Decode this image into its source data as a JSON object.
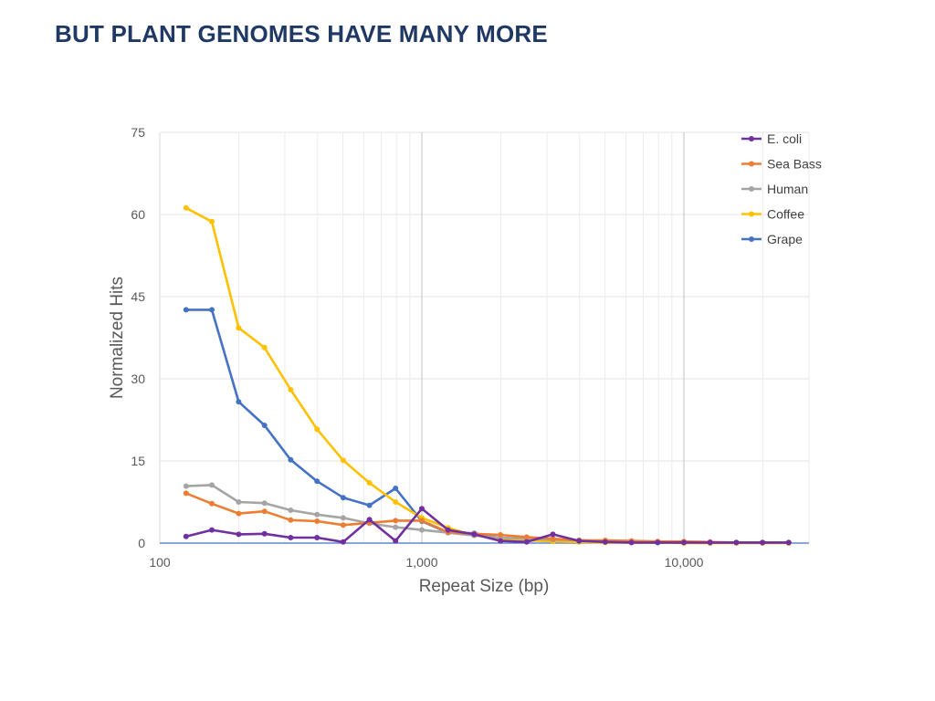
{
  "slide": {
    "title": "BUT PLANT GENOMES HAVE MANY MORE"
  },
  "chart_data": {
    "type": "line",
    "xlabel": "Repeat Size (bp)",
    "ylabel": "Normalized Hits",
    "x_scale": "log",
    "xlim": [
      100,
      30000
    ],
    "ylim": [
      0,
      75
    ],
    "y_ticks": [
      0,
      15,
      30,
      45,
      60,
      75
    ],
    "x_ticks": [
      100,
      1000,
      10000
    ],
    "x_tick_labels": [
      "100",
      "1,000",
      "10,000"
    ],
    "grid": true,
    "legend_position": "right",
    "x": [
      126,
      158,
      200,
      251,
      316,
      398,
      501,
      631,
      794,
      1000,
      1259,
      1585,
      1995,
      2512,
      3162,
      3981,
      5012,
      6310,
      7943,
      10000,
      12589,
      15849,
      19953,
      25119
    ],
    "series": [
      {
        "name": "E. coli",
        "color": "#7030a0",
        "values": [
          1.2,
          2.4,
          1.6,
          1.7,
          1.0,
          1.0,
          0.2,
          4.3,
          0.4,
          6.3,
          2.4,
          1.6,
          0.4,
          0.2,
          1.6,
          0.4,
          0.2,
          0.1,
          0.1,
          0.1,
          0.1,
          0.1,
          0.1,
          0.1
        ]
      },
      {
        "name": "Sea Bass",
        "color": "#ed7d31",
        "values": [
          9.1,
          7.2,
          5.4,
          5.8,
          4.2,
          4.0,
          3.3,
          3.7,
          4.1,
          4.1,
          2.0,
          1.7,
          1.5,
          1.1,
          0.8,
          0.5,
          0.5,
          0.4,
          0.3,
          0.3,
          0.2,
          0.1,
          0.1,
          0.1
        ]
      },
      {
        "name": "Human",
        "color": "#a5a5a5",
        "values": [
          10.4,
          10.6,
          7.5,
          7.3,
          6.0,
          5.2,
          4.6,
          3.6,
          2.9,
          2.4,
          1.9,
          1.4,
          1.0,
          0.8,
          0.6,
          0.5,
          0.4,
          0.3,
          0.2,
          0.2,
          0.1,
          0.1,
          0.1,
          0.1
        ]
      },
      {
        "name": "Coffee",
        "color": "#ffc000",
        "values": [
          61.2,
          58.7,
          39.3,
          35.7,
          28.0,
          20.8,
          15.1,
          11.0,
          7.5,
          4.6,
          2.8,
          1.4,
          0.8,
          0.5,
          0.3,
          0.2,
          0.1,
          0.1,
          0.1,
          0.0,
          0.0,
          0.0,
          0.0,
          0.0
        ]
      },
      {
        "name": "Grape",
        "color": "#4472c4",
        "values": [
          42.6,
          42.6,
          25.8,
          21.5,
          15.2,
          11.3,
          8.3,
          6.9,
          10.0,
          4.0,
          1.9,
          1.8,
          0.9,
          0.7,
          0.5,
          0.5,
          0.3,
          0.2,
          0.1,
          0.1,
          0.1,
          0.1,
          0.1,
          0.1
        ]
      }
    ]
  }
}
